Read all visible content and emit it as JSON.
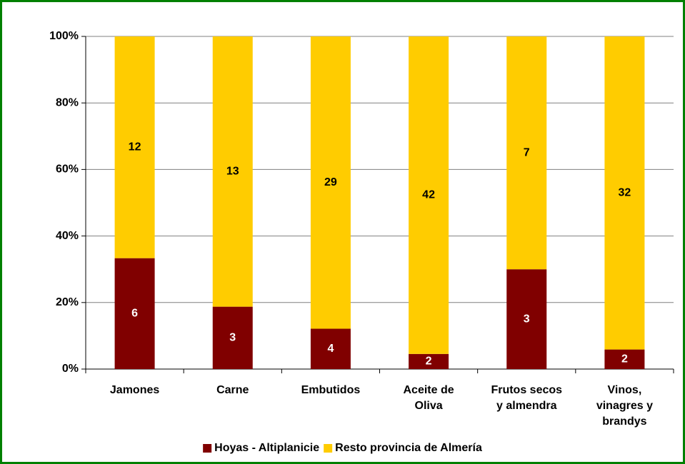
{
  "chart_data": {
    "type": "bar",
    "stacking": "percent",
    "categories": [
      "Jamones",
      "Carne",
      "Embutidos",
      "Aceite de Oliva",
      "Frutos secos y almendra",
      "Vinos, vinagres y brandys"
    ],
    "series": [
      {
        "name": "Hoyas - Altiplanicie",
        "color": "#800000",
        "label_color": "#ffffff",
        "values": [
          6,
          3,
          4,
          2,
          3,
          2
        ]
      },
      {
        "name": "Resto provincia de Almería",
        "color": "#ffcc00",
        "label_color": "#000000",
        "values": [
          12,
          13,
          29,
          42,
          7,
          32
        ]
      }
    ],
    "ylim": [
      0,
      100
    ],
    "yticks": [
      {
        "value": 0,
        "label": "0%"
      },
      {
        "value": 20,
        "label": "20%"
      },
      {
        "value": 40,
        "label": "40%"
      },
      {
        "value": 60,
        "label": "60%"
      },
      {
        "value": 80,
        "label": "80%"
      },
      {
        "value": 100,
        "label": "100%"
      }
    ],
    "grid": true,
    "legend": "bottom"
  }
}
